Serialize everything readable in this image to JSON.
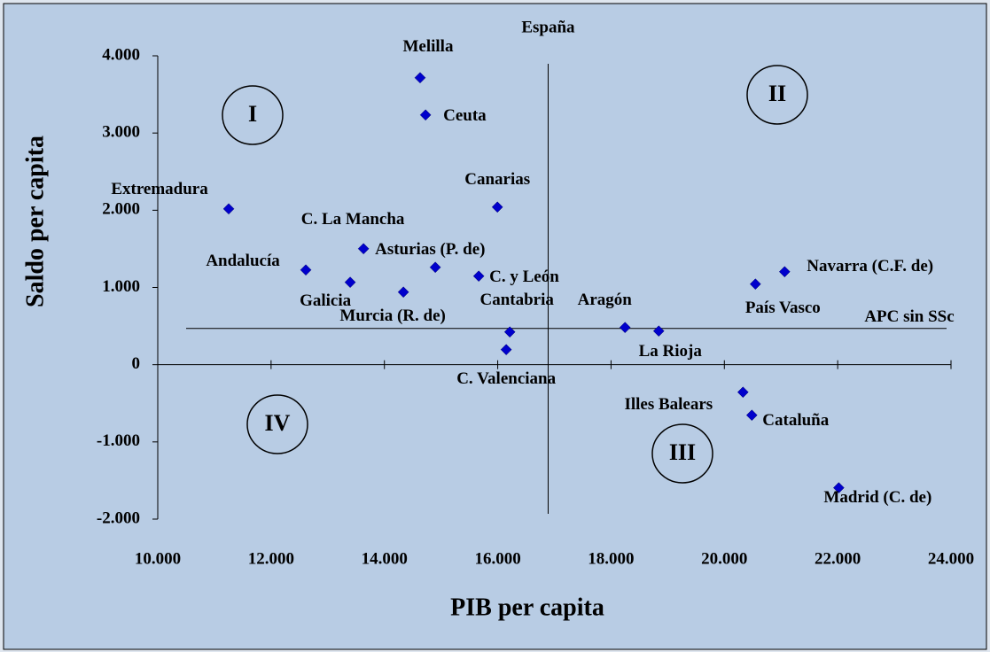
{
  "chart_data": {
    "type": "scatter",
    "x_label": "PIB per capita",
    "y_label": "Saldo per capita",
    "xlim": [
      10000,
      24000
    ],
    "ylim": [
      -2000,
      4000
    ],
    "xticks": [
      {
        "value": 10000,
        "label": "10.000"
      },
      {
        "value": 12000,
        "label": "12.000"
      },
      {
        "value": 14000,
        "label": "14.000"
      },
      {
        "value": 16000,
        "label": "16.000"
      },
      {
        "value": 18000,
        "label": "18.000"
      },
      {
        "value": 20000,
        "label": "20.000"
      },
      {
        "value": 22000,
        "label": "22.000"
      },
      {
        "value": 24000,
        "label": "24.000"
      }
    ],
    "yticks": [
      {
        "value": -2000,
        "label": "-2.000"
      },
      {
        "value": -1000,
        "label": "-1.000"
      },
      0,
      {
        "value": 1000,
        "label": "1.000"
      },
      {
        "value": 2000,
        "label": "2.000"
      },
      {
        "value": 3000,
        "label": "3.000"
      },
      {
        "value": 4000,
        "label": "4.000"
      }
    ],
    "color": "#0000cc",
    "points": [
      {
        "label": "Melilla",
        "x": 14630,
        "y": 3716
      },
      {
        "label": "Ceuta",
        "x": 14726,
        "y": 3234
      },
      {
        "label": "Extremadura",
        "x": 11252,
        "y": 2018
      },
      {
        "label": "Canarias",
        "x": 15994,
        "y": 2041
      },
      {
        "label": "C. La Mancha",
        "x": 13631,
        "y": 1502
      },
      {
        "label": "Andalucía",
        "x": 12613,
        "y": 1227
      },
      {
        "label": "Galicia",
        "x": 13396,
        "y": 1067
      },
      {
        "label": "Asturias (P. de)",
        "x": 14898,
        "y": 1261
      },
      {
        "label": "Murcia (R. de)",
        "x": 14335,
        "y": 940
      },
      {
        "label": "C. y León",
        "x": 15665,
        "y": 1147
      },
      {
        "label": "Cantabria",
        "x": 16213,
        "y": 424
      },
      {
        "label": "Aragón",
        "x": 18247,
        "y": 482
      },
      {
        "label": "La Rioja",
        "x": 18842,
        "y": 436
      },
      {
        "label": "C. Valenciana",
        "x": 16150,
        "y": 195
      },
      {
        "label": "Illes Balears",
        "x": 20329,
        "y": -356
      },
      {
        "label": "Cataluña",
        "x": 20485,
        "y": -654
      },
      {
        "label": "Madrid (C. de)",
        "x": 22019,
        "y": -1594
      },
      {
        "label": "País Vasco",
        "x": 20548,
        "y": 1044
      },
      {
        "label": "Navarra (C.F. de)",
        "x": 21064,
        "y": 1204
      }
    ],
    "reference_lines": [
      {
        "axis": "x",
        "value": 16890,
        "label": "España"
      },
      {
        "axis": "y",
        "value": 470,
        "label": "APC sin SSc"
      }
    ],
    "quadrants": [
      "I",
      "II",
      "III",
      "IV"
    ]
  }
}
